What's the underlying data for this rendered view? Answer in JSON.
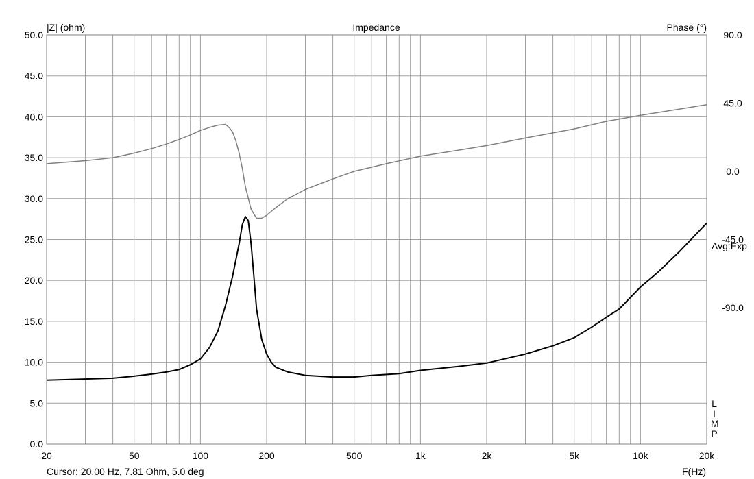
{
  "chart_data": {
    "type": "line",
    "title": "Impedance",
    "y_label_left": "|Z| (ohm)",
    "y_label_right": "Phase (°)",
    "x_label": "F(Hz)",
    "x_scale": "log",
    "xlim": [
      20,
      20000
    ],
    "ylim_left": [
      0,
      50
    ],
    "ylim_right": [
      -180,
      90
    ],
    "x_ticks": [
      20,
      50,
      100,
      200,
      500,
      1000,
      2000,
      5000,
      10000,
      20000
    ],
    "x_tick_labels": [
      "20",
      "50",
      "100",
      "200",
      "500",
      "1k",
      "2k",
      "5k",
      "10k",
      "20k"
    ],
    "y_ticks_left": [
      "0.0",
      "5.0",
      "10.0",
      "15.0",
      "20.0",
      "25.0",
      "30.0",
      "35.0",
      "40.0",
      "45.0",
      "50.0"
    ],
    "y_ticks_right": [
      "-90.0",
      "-45.0",
      "0.0",
      "45.0",
      "90.0"
    ],
    "grid": true,
    "averaging_label": "Avg:Exp",
    "side_letters": [
      "L",
      "I",
      "M",
      "P"
    ],
    "cursor_readout": "Cursor: 20.00 Hz, 7.81 Ohm, 5.0 deg",
    "colors": {
      "impedance": "#000000",
      "phase": "#808080",
      "grid": "#a0a0a0"
    },
    "series": [
      {
        "name": "|Z|",
        "axis": "left",
        "color": "#000000",
        "x": [
          20,
          30,
          40,
          50,
          60,
          70,
          80,
          90,
          100,
          110,
          120,
          130,
          140,
          150,
          155,
          160,
          165,
          170,
          175,
          180,
          190,
          200,
          210,
          220,
          250,
          300,
          400,
          500,
          600,
          800,
          1000,
          1500,
          2000,
          3000,
          4000,
          5000,
          6000,
          7000,
          8000,
          10000,
          12000,
          15000,
          20000
        ],
        "values": [
          7.81,
          7.95,
          8.05,
          8.3,
          8.55,
          8.8,
          9.1,
          9.7,
          10.4,
          11.8,
          13.8,
          16.9,
          20.5,
          24.5,
          26.8,
          27.8,
          27.3,
          24.5,
          20.5,
          16.5,
          12.8,
          11.0,
          10.0,
          9.4,
          8.8,
          8.4,
          8.2,
          8.2,
          8.4,
          8.6,
          9.0,
          9.5,
          9.9,
          11.0,
          12.0,
          13.0,
          14.3,
          15.5,
          16.5,
          19.2,
          21.0,
          23.5,
          27.0
        ]
      },
      {
        "name": "Phase",
        "axis": "right",
        "color": "#808080",
        "x": [
          20,
          30,
          40,
          50,
          60,
          70,
          80,
          90,
          100,
          110,
          120,
          130,
          135,
          140,
          145,
          150,
          155,
          160,
          170,
          180,
          190,
          200,
          220,
          250,
          300,
          400,
          500,
          700,
          1000,
          1500,
          2000,
          3000,
          5000,
          7000,
          10000,
          15000,
          20000
        ],
        "values": [
          5,
          7,
          9,
          12,
          15,
          18,
          21,
          24,
          27,
          29,
          30.5,
          31,
          29,
          26,
          20,
          12,
          2,
          -10,
          -25,
          -31,
          -31,
          -29,
          -24,
          -18,
          -12,
          -5,
          0,
          5,
          10,
          14,
          17,
          22,
          28,
          33,
          37,
          41,
          44
        ]
      }
    ]
  }
}
